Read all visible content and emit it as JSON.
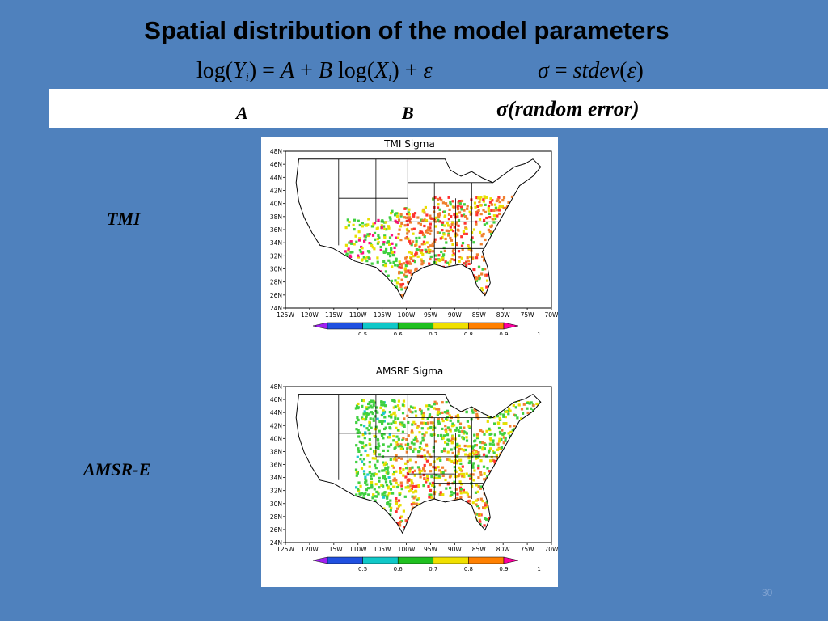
{
  "slide": {
    "title": "Spatial distribution of the model parameters",
    "equation_left": {
      "log1": "log(",
      "Y": "Y",
      "sub_i": "i",
      "rest1": ") = ",
      "A": "A",
      "plus1": " + ",
      "B": "B",
      "log2": " log(",
      "X": "X",
      "sub_i2": "i",
      "rest2": ") + ",
      "eps": "ε"
    },
    "equation_right": {
      "sigma": "σ",
      "eq": " = ",
      "stdev": "stdev",
      "open": "(",
      "eps": "ε",
      "close": ")"
    },
    "columns": {
      "a": "A",
      "b": "B",
      "sigma": "σ(random error)"
    },
    "rows": {
      "tmi": "TMI",
      "amsre": "AMSR-E"
    },
    "page_number": "30"
  },
  "maps": [
    {
      "title": "TMI Sigma",
      "lat_labels": [
        "48N",
        "46N",
        "44N",
        "42N",
        "40N",
        "38N",
        "36N",
        "34N",
        "32N",
        "30N",
        "28N",
        "26N",
        "24N"
      ],
      "lon_labels": [
        "125W",
        "120W",
        "115W",
        "110W",
        "105W",
        "100W",
        "95W",
        "90W",
        "85W",
        "80W",
        "75W",
        "70W"
      ],
      "colorbar_ticks": [
        "0.5",
        "0.6",
        "0.7",
        "0.8",
        "0.9",
        "1"
      ]
    },
    {
      "title": "AMSRE Sigma",
      "lat_labels": [
        "48N",
        "46N",
        "44N",
        "42N",
        "40N",
        "38N",
        "36N",
        "34N",
        "32N",
        "30N",
        "28N",
        "26N",
        "24N"
      ],
      "lon_labels": [
        "125W",
        "120W",
        "115W",
        "110W",
        "105W",
        "100W",
        "95W",
        "90W",
        "85W",
        "80W",
        "75W",
        "70W"
      ],
      "colorbar_ticks": [
        "0.5",
        "0.6",
        "0.7",
        "0.8",
        "0.9",
        "1"
      ]
    }
  ],
  "colorbar_colors": [
    "#a020f0",
    "#2050e0",
    "#10c8c8",
    "#20c020",
    "#f0e000",
    "#ff8000",
    "#ff00a0"
  ],
  "data_colors": {
    "low_green": "#40d040",
    "mid_yellow": "#e8e000",
    "orange": "#f08030",
    "red": "#ff3030",
    "magenta": "#ff1080",
    "cyan": "#20c8d0",
    "blue": "#3050e0"
  }
}
